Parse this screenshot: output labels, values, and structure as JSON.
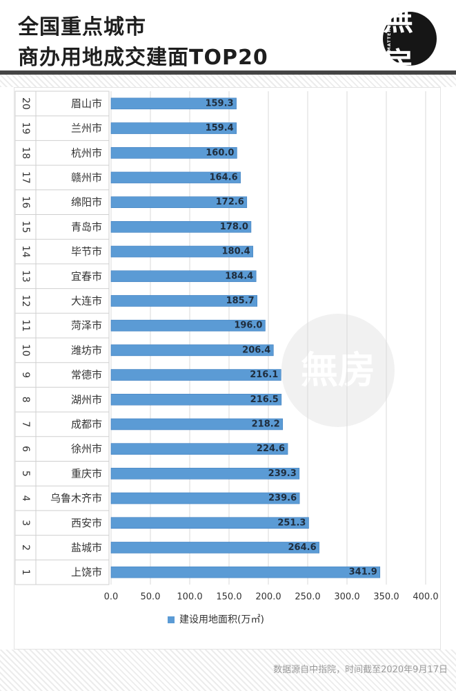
{
  "header": {
    "title_line1": "全国重点城市",
    "title_line2": "商办用地成交建面TOP20",
    "logo_glyph": "無房",
    "logo_small": "NO MATTER"
  },
  "footer": {
    "source_note": "数据源自中指院，时间截至2020年9月17日"
  },
  "watermark": {
    "glyph": "無房",
    "small": "NO MATTER"
  },
  "colors": {
    "bar": "#5b9bd5",
    "bar_dark": "#3f7fbf",
    "grid": "#d9d9d9",
    "title": "#1e1e1e"
  },
  "chart_data": {
    "type": "bar",
    "orientation": "horizontal",
    "ranks": [
      "20",
      "19",
      "18",
      "17",
      "16",
      "15",
      "14",
      "13",
      "12",
      "11",
      "10",
      "9",
      "8",
      "7",
      "6",
      "5",
      "4",
      "3",
      "2",
      "1"
    ],
    "categories": [
      "眉山市",
      "兰州市",
      "杭州市",
      "赣州市",
      "绵阳市",
      "青岛市",
      "毕节市",
      "宜春市",
      "大连市",
      "菏泽市",
      "潍坊市",
      "常德市",
      "湖州市",
      "成都市",
      "徐州市",
      "重庆市",
      "乌鲁木齐市",
      "西安市",
      "盐城市",
      "上饶市"
    ],
    "values": [
      159.3,
      159.4,
      160.0,
      164.6,
      172.6,
      178.0,
      180.4,
      184.4,
      185.7,
      196.0,
      206.4,
      216.1,
      216.5,
      218.2,
      224.6,
      239.3,
      239.6,
      251.3,
      264.6,
      341.9
    ],
    "value_labels": [
      "159.3",
      "159.4",
      "160.0",
      "164.6",
      "172.6",
      "178.0",
      "180.4",
      "184.4",
      "185.7",
      "196.0",
      "206.4",
      "216.1",
      "216.5",
      "218.2",
      "224.6",
      "239.3",
      "239.6",
      "251.3",
      "264.6",
      "341.9"
    ],
    "series": [
      {
        "name": "建设用地面积(万㎡)"
      }
    ],
    "xlim": [
      0,
      400
    ],
    "xticks": [
      "0.0",
      "50.0",
      "100.0",
      "150.0",
      "200.0",
      "250.0",
      "300.0",
      "350.0",
      "400.0"
    ],
    "grid": true,
    "legend_position": "bottom"
  }
}
